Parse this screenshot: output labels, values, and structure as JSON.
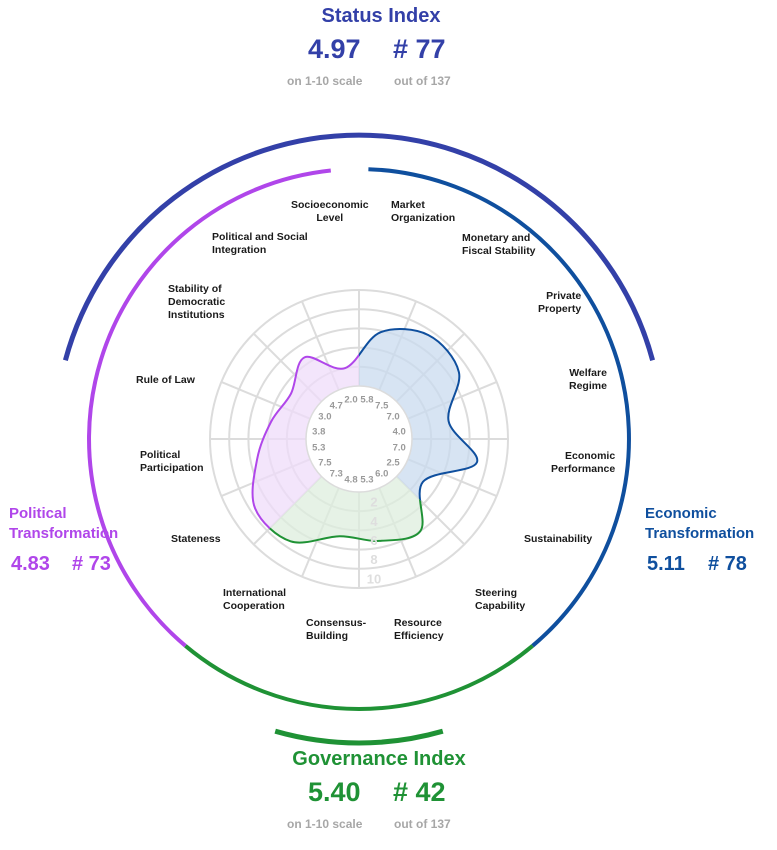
{
  "status_index": {
    "title": "Status Index",
    "score": "4.97",
    "rank": "# 77",
    "score_caption": "on 1-10 scale",
    "rank_caption": "out of 137",
    "color": "#3340a8"
  },
  "governance_index": {
    "title": "Governance Index",
    "score": "5.40",
    "rank": "# 42",
    "score_caption": "on 1-10 scale",
    "rank_caption": "out of 137",
    "color": "#1f9235"
  },
  "political_transformation": {
    "title": "Political\nTransformation",
    "score": "4.83",
    "rank": "# 73",
    "color": "#b046ea"
  },
  "economic_transformation": {
    "title": "Economic\nTransformation",
    "score": "5.11",
    "rank": "# 78",
    "color": "#0f4f9e"
  },
  "chart_data": {
    "type": "radar",
    "scale_ticks": [
      "2",
      "4",
      "6",
      "8",
      "10"
    ],
    "range": [
      0,
      10
    ],
    "categories": [
      "Market\nOrganization",
      "Monetary and\nFiscal Stability",
      "Private\nProperty",
      "Welfare\nRegime",
      "Economic\nPerformance",
      "Sustainability",
      "Steering\nCapability",
      "Resource\nEfficiency",
      "Consensus-\nBuilding",
      "International\nCooperation",
      "Stateness",
      "Political\nParticipation",
      "Rule of Law",
      "Stability of\nDemocratic\nInstitutions",
      "Political and Social\nIntegration",
      "Socioeconomic\nLevel"
    ],
    "values": [
      5.8,
      7.5,
      7.0,
      4.0,
      7.0,
      2.5,
      6.0,
      5.3,
      4.8,
      7.3,
      7.5,
      5.3,
      3.8,
      3.0,
      4.7,
      2.0
    ],
    "groups": [
      {
        "name": "Economic Transformation",
        "color": "#0f4f9e",
        "fill": "#c9dbef"
      },
      {
        "name": "Governance",
        "color": "#1f9235",
        "fill": "#deeedd"
      },
      {
        "name": "Political Transformation",
        "color": "#b046ea",
        "fill": "#efdcf9"
      }
    ],
    "grid_color": "#dcdcdc"
  }
}
